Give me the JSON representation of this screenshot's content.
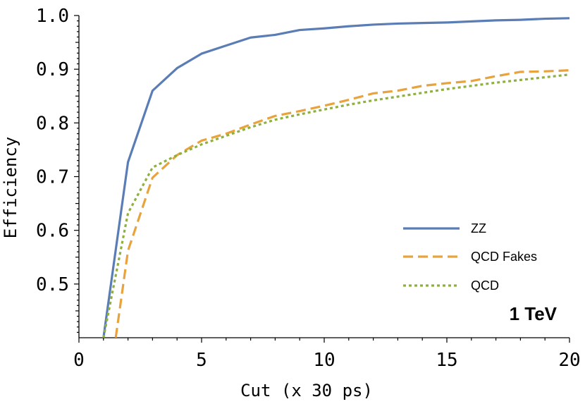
{
  "chart_data": {
    "type": "line",
    "title": "",
    "xlabel": "Cut (x 30 ps)",
    "ylabel": "Efficiency",
    "annotation": "1 TeV",
    "xlim": [
      0,
      20
    ],
    "ylim": [
      0.4,
      1.0
    ],
    "xticks": [
      0,
      5,
      10,
      15,
      20
    ],
    "xtick_labels": [
      "0",
      "5",
      "10",
      "15",
      "20"
    ],
    "yticks": [
      0.5,
      0.6,
      0.7,
      0.8,
      0.9,
      1.0
    ],
    "ytick_labels": [
      "0.5",
      "0.6",
      "0.7",
      "0.8",
      "0.9",
      "1.0"
    ],
    "grid": false,
    "legend_position": "bottom-right",
    "series": [
      {
        "name": "ZZ",
        "color": "#5b7db5",
        "dash": "solid",
        "points": [
          [
            1,
            0.4
          ],
          [
            2,
            0.727
          ],
          [
            3,
            0.86
          ],
          [
            4,
            0.902
          ],
          [
            5,
            0.929
          ],
          [
            6,
            0.944
          ],
          [
            7,
            0.959
          ],
          [
            8,
            0.964
          ],
          [
            9,
            0.973
          ],
          [
            10,
            0.976
          ],
          [
            11,
            0.98
          ],
          [
            12,
            0.983
          ],
          [
            13,
            0.985
          ],
          [
            14,
            0.986
          ],
          [
            15,
            0.987
          ],
          [
            16,
            0.989
          ],
          [
            17,
            0.991
          ],
          [
            18,
            0.992
          ],
          [
            19,
            0.994
          ],
          [
            20,
            0.995
          ]
        ]
      },
      {
        "name": "QCD Fakes",
        "color": "#e8a33d",
        "dash": "dashed",
        "points": [
          [
            1.5,
            0.4
          ],
          [
            2,
            0.562
          ],
          [
            3,
            0.698
          ],
          [
            4,
            0.74
          ],
          [
            5,
            0.767
          ],
          [
            6,
            0.78
          ],
          [
            7,
            0.797
          ],
          [
            8,
            0.813
          ],
          [
            9,
            0.822
          ],
          [
            10,
            0.832
          ],
          [
            11,
            0.843
          ],
          [
            12,
            0.855
          ],
          [
            13,
            0.86
          ],
          [
            14,
            0.869
          ],
          [
            15,
            0.874
          ],
          [
            16,
            0.878
          ],
          [
            17,
            0.887
          ],
          [
            18,
            0.895
          ],
          [
            19,
            0.896
          ],
          [
            20,
            0.898
          ]
        ]
      },
      {
        "name": "QCD",
        "color": "#8fb03e",
        "dash": "dotted",
        "points": [
          [
            1,
            0.4
          ],
          [
            2,
            0.632
          ],
          [
            3,
            0.717
          ],
          [
            4,
            0.74
          ],
          [
            5,
            0.76
          ],
          [
            6,
            0.776
          ],
          [
            7,
            0.792
          ],
          [
            8,
            0.806
          ],
          [
            9,
            0.816
          ],
          [
            10,
            0.825
          ],
          [
            11,
            0.834
          ],
          [
            12,
            0.842
          ],
          [
            13,
            0.849
          ],
          [
            14,
            0.856
          ],
          [
            15,
            0.863
          ],
          [
            16,
            0.869
          ],
          [
            17,
            0.875
          ],
          [
            18,
            0.88
          ],
          [
            19,
            0.885
          ],
          [
            20,
            0.89
          ]
        ]
      }
    ]
  }
}
